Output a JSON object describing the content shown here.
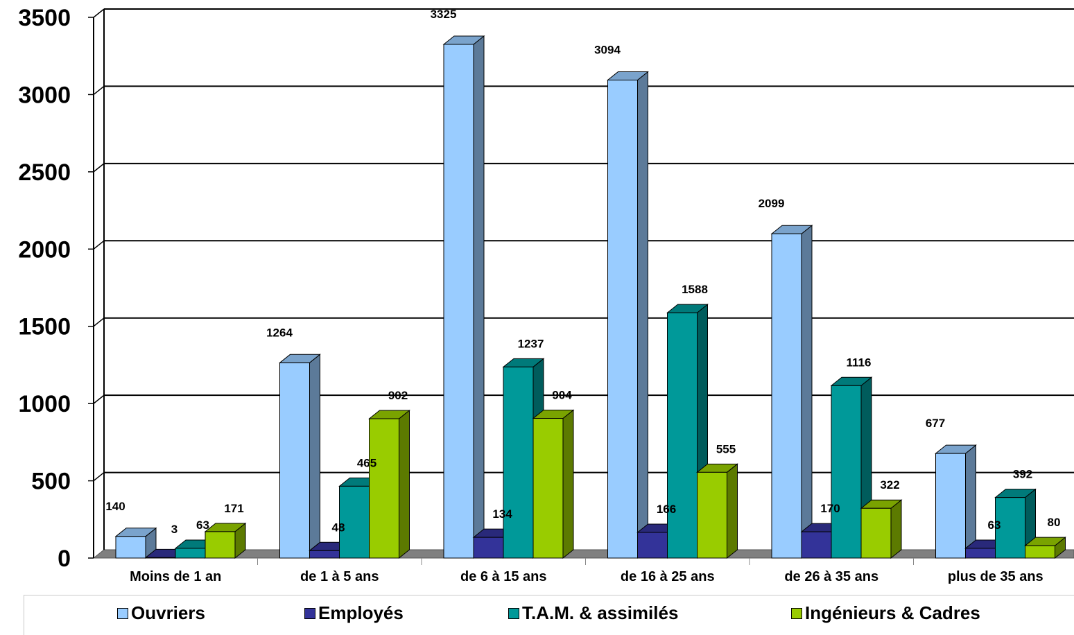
{
  "chart_data": {
    "type": "bar",
    "categories": [
      "Moins de 1 an",
      "de 1 à 5 ans",
      "de 6 à 15 ans",
      "de 16 à 25 ans",
      "de 26 à 35 ans",
      "plus de 35 ans"
    ],
    "series": [
      {
        "name": "Ouvriers",
        "values": [
          140,
          1264,
          3325,
          3094,
          2099,
          677
        ],
        "color": "#99ccff"
      },
      {
        "name": "Employés",
        "values": [
          3,
          48,
          134,
          166,
          170,
          63
        ],
        "color": "#333399"
      },
      {
        "name": "T.A.M. & assimilés",
        "values": [
          63,
          465,
          1237,
          1588,
          1116,
          392
        ],
        "color": "#009999"
      },
      {
        "name": "Ingénieurs & Cadres",
        "values": [
          171,
          902,
          904,
          555,
          322,
          80
        ],
        "color": "#99cc00"
      }
    ],
    "y_ticks": [
      "0",
      "500",
      "1000",
      "1500",
      "2000",
      "2500",
      "3000",
      "3500"
    ],
    "ylim": [
      0,
      3500
    ],
    "grid": true,
    "legend_position": "bottom",
    "three_d": true
  }
}
